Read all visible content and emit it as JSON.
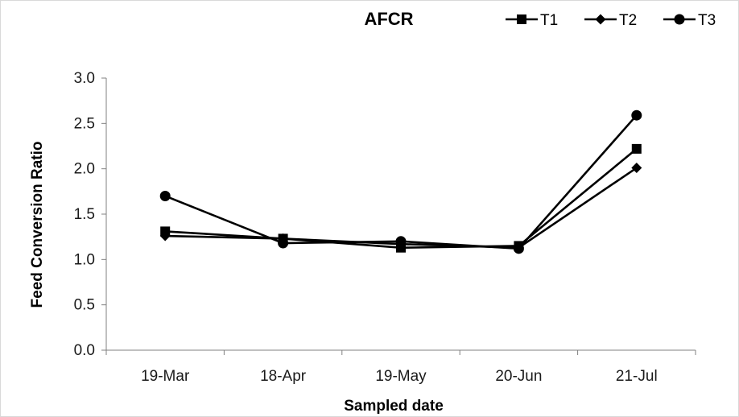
{
  "chart_data": {
    "type": "line",
    "title": "AFCR",
    "xlabel": "Sampled date",
    "ylabel": "Feed Conversion Ratio",
    "categories": [
      "19-Mar",
      "18-Apr",
      "19-May",
      "20-Jun",
      "21-Jul"
    ],
    "ylim": [
      0,
      3.0
    ],
    "yticks": [
      "0.0",
      "0.5",
      "1.0",
      "1.5",
      "2.0",
      "2.5",
      "3.0"
    ],
    "grid": false,
    "legend_position": "top-right",
    "series": [
      {
        "name": "T1",
        "marker": "square",
        "color": "#000000",
        "values": [
          1.31,
          1.23,
          1.13,
          1.15,
          2.22
        ]
      },
      {
        "name": "T2",
        "marker": "diamond",
        "color": "#000000",
        "values": [
          1.26,
          1.23,
          1.17,
          1.13,
          2.01
        ]
      },
      {
        "name": "T3",
        "marker": "circle",
        "color": "#000000",
        "values": [
          1.7,
          1.18,
          1.2,
          1.12,
          2.59
        ]
      }
    ]
  }
}
